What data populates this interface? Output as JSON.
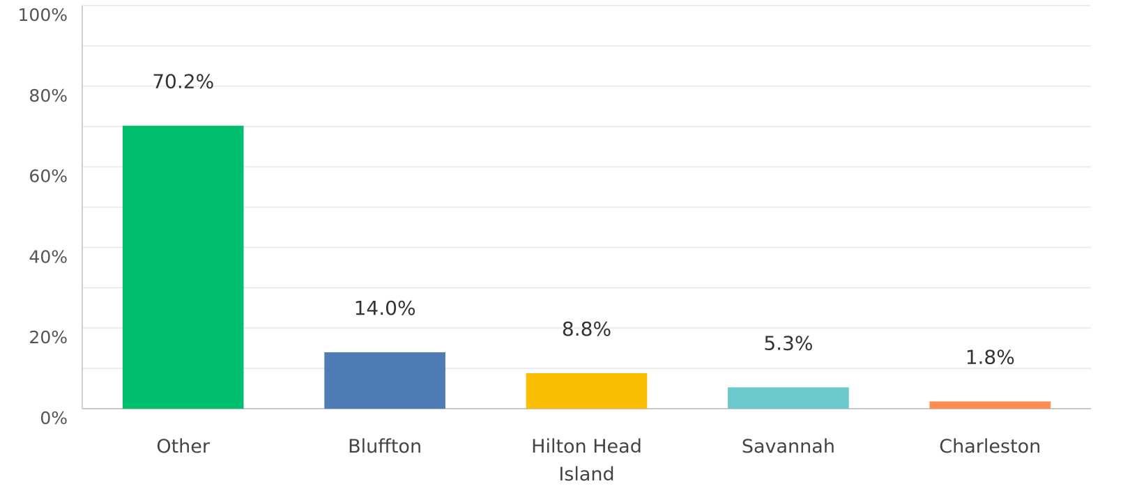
{
  "chart_data": {
    "type": "bar",
    "categories": [
      "Other",
      "Bluffton",
      "Hilton Head Island",
      "Savannah",
      "Charleston"
    ],
    "values": [
      70.2,
      14.0,
      8.8,
      5.3,
      1.8
    ],
    "value_labels": [
      "70.2%",
      "14.0%",
      "8.8%",
      "5.3%",
      "1.8%"
    ],
    "colors": [
      "#00bf6f",
      "#507cb6",
      "#f9be00",
      "#6bc8cd",
      "#ff8b4f"
    ],
    "ylim": [
      0,
      100
    ],
    "yticks": [
      {
        "value": 0,
        "label": "0%"
      },
      {
        "value": 20,
        "label": "20%"
      },
      {
        "value": 40,
        "label": "40%"
      },
      {
        "value": 60,
        "label": "60%"
      },
      {
        "value": 80,
        "label": "80%"
      },
      {
        "value": 100,
        "label": "100%"
      }
    ],
    "minor_yticks": [
      10,
      30,
      50,
      70,
      90
    ],
    "grid": true
  }
}
